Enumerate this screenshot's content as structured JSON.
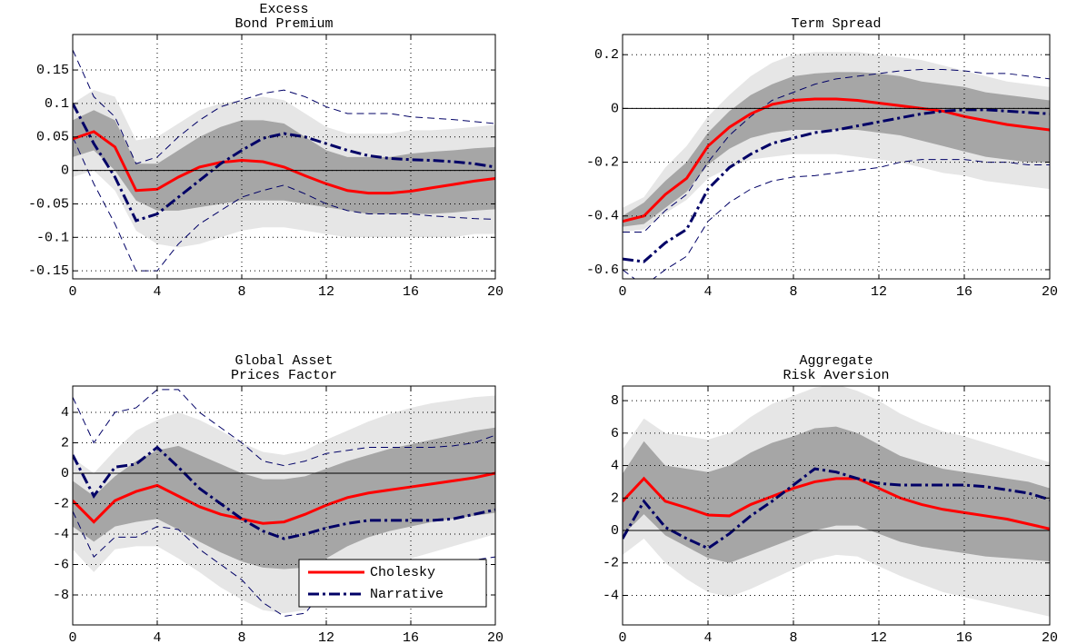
{
  "chart_data": [
    {
      "type": "line",
      "title": [
        "Excess",
        "Bond Premium"
      ],
      "x": [
        0,
        1,
        2,
        3,
        4,
        5,
        6,
        7,
        8,
        9,
        10,
        11,
        12,
        13,
        14,
        15,
        16,
        17,
        18,
        19,
        20
      ],
      "xlim": [
        0,
        20
      ],
      "xticks": [
        0,
        4,
        8,
        12,
        16,
        20
      ],
      "ylim": [
        -0.162,
        0.203
      ],
      "yticks": [
        -0.15,
        -0.1,
        -0.05,
        0,
        0.05,
        0.1,
        0.15
      ],
      "grid": true,
      "bands": [
        {
          "color": "#e6e6e6",
          "style": "fill",
          "lower": [
            -0.01,
            0.0,
            -0.03,
            -0.09,
            -0.11,
            -0.115,
            -0.11,
            -0.1,
            -0.09,
            -0.085,
            -0.085,
            -0.09,
            -0.095,
            -0.1,
            -0.1,
            -0.1,
            -0.1,
            -0.1,
            -0.1,
            -0.095,
            -0.095
          ],
          "upper": [
            0.1,
            0.12,
            0.11,
            0.045,
            0.05,
            0.07,
            0.09,
            0.1,
            0.105,
            0.11,
            0.105,
            0.085,
            0.065,
            0.055,
            0.055,
            0.055,
            0.06,
            0.06,
            0.062,
            0.065,
            0.068
          ]
        },
        {
          "color": "#a6a6a6",
          "style": "fill",
          "lower": [
            0.02,
            0.03,
            0.0,
            -0.045,
            -0.06,
            -0.06,
            -0.055,
            -0.05,
            -0.045,
            -0.045,
            -0.045,
            -0.05,
            -0.055,
            -0.06,
            -0.065,
            -0.065,
            -0.065,
            -0.065,
            -0.063,
            -0.06,
            -0.058
          ],
          "upper": [
            0.075,
            0.09,
            0.075,
            0.01,
            0.01,
            0.03,
            0.05,
            0.065,
            0.075,
            0.075,
            0.07,
            0.05,
            0.03,
            0.02,
            0.02,
            0.02,
            0.025,
            0.028,
            0.03,
            0.033,
            0.035
          ]
        },
        {
          "color": "#000066",
          "style": "dashed",
          "lower": [
            0.05,
            -0.02,
            -0.08,
            -0.15,
            -0.15,
            -0.11,
            -0.08,
            -0.06,
            -0.04,
            -0.03,
            -0.022,
            -0.035,
            -0.05,
            -0.06,
            -0.065,
            -0.065,
            -0.065,
            -0.068,
            -0.07,
            -0.072,
            -0.073
          ],
          "upper": [
            0.18,
            0.11,
            0.08,
            0.01,
            0.02,
            0.05,
            0.075,
            0.095,
            0.105,
            0.115,
            0.12,
            0.11,
            0.095,
            0.085,
            0.085,
            0.085,
            0.08,
            0.078,
            0.076,
            0.073,
            0.07
          ]
        }
      ],
      "series": [
        {
          "color": "#ff0000",
          "dash": "solid",
          "values": [
            0.047,
            0.058,
            0.035,
            -0.03,
            -0.028,
            -0.01,
            0.005,
            0.012,
            0.015,
            0.013,
            0.005,
            -0.008,
            -0.02,
            -0.03,
            -0.034,
            -0.034,
            -0.031,
            -0.026,
            -0.021,
            -0.016,
            -0.012
          ]
        },
        {
          "color": "#000066",
          "dash": "dashdot",
          "values": [
            0.1,
            0.04,
            -0.01,
            -0.075,
            -0.065,
            -0.04,
            -0.015,
            0.01,
            0.03,
            0.048,
            0.055,
            0.05,
            0.04,
            0.03,
            0.022,
            0.018,
            0.016,
            0.015,
            0.013,
            0.01,
            0.005
          ]
        }
      ]
    },
    {
      "type": "line",
      "title": [
        "Term Spread"
      ],
      "x": [
        0,
        1,
        2,
        3,
        4,
        5,
        6,
        7,
        8,
        9,
        10,
        11,
        12,
        13,
        14,
        15,
        16,
        17,
        18,
        19,
        20
      ],
      "xlim": [
        0,
        20
      ],
      "xticks": [
        0,
        4,
        8,
        12,
        16,
        20
      ],
      "ylim": [
        -0.634,
        0.275
      ],
      "yticks": [
        -0.6,
        -0.4,
        -0.2,
        0,
        0.2
      ],
      "grid": true,
      "bands": [
        {
          "color": "#e6e6e6",
          "style": "fill",
          "lower": [
            -0.46,
            -0.45,
            -0.39,
            -0.34,
            -0.26,
            -0.22,
            -0.19,
            -0.18,
            -0.17,
            -0.17,
            -0.17,
            -0.18,
            -0.19,
            -0.2,
            -0.22,
            -0.24,
            -0.25,
            -0.27,
            -0.28,
            -0.29,
            -0.3
          ],
          "upper": [
            -0.37,
            -0.33,
            -0.22,
            -0.14,
            -0.03,
            0.05,
            0.12,
            0.17,
            0.2,
            0.21,
            0.21,
            0.21,
            0.2,
            0.19,
            0.18,
            0.16,
            0.14,
            0.12,
            0.1,
            0.09,
            0.08
          ]
        },
        {
          "color": "#a6a6a6",
          "style": "fill",
          "lower": [
            -0.44,
            -0.43,
            -0.37,
            -0.31,
            -0.21,
            -0.15,
            -0.11,
            -0.09,
            -0.08,
            -0.08,
            -0.08,
            -0.08,
            -0.09,
            -0.1,
            -0.12,
            -0.14,
            -0.16,
            -0.18,
            -0.19,
            -0.2,
            -0.2
          ],
          "upper": [
            -0.4,
            -0.35,
            -0.27,
            -0.2,
            -0.09,
            -0.01,
            0.05,
            0.09,
            0.12,
            0.13,
            0.135,
            0.135,
            0.13,
            0.12,
            0.1,
            0.09,
            0.08,
            0.06,
            0.05,
            0.04,
            0.03
          ]
        },
        {
          "color": "#000066",
          "style": "dashed",
          "lower": [
            -0.6,
            -0.66,
            -0.6,
            -0.55,
            -0.42,
            -0.35,
            -0.3,
            -0.27,
            -0.255,
            -0.25,
            -0.24,
            -0.23,
            -0.22,
            -0.2,
            -0.19,
            -0.19,
            -0.19,
            -0.2,
            -0.2,
            -0.21,
            -0.21
          ],
          "upper": [
            -0.46,
            -0.46,
            -0.38,
            -0.32,
            -0.2,
            -0.1,
            -0.03,
            0.03,
            0.06,
            0.09,
            0.11,
            0.12,
            0.13,
            0.14,
            0.145,
            0.145,
            0.14,
            0.13,
            0.13,
            0.12,
            0.11
          ]
        }
      ],
      "series": [
        {
          "color": "#ff0000",
          "dash": "solid",
          "values": [
            -0.42,
            -0.4,
            -0.32,
            -0.26,
            -0.14,
            -0.07,
            -0.02,
            0.015,
            0.03,
            0.035,
            0.035,
            0.03,
            0.02,
            0.01,
            0.0,
            -0.01,
            -0.03,
            -0.045,
            -0.06,
            -0.07,
            -0.08
          ]
        },
        {
          "color": "#000066",
          "dash": "dashdot",
          "values": [
            -0.56,
            -0.57,
            -0.5,
            -0.45,
            -0.3,
            -0.22,
            -0.17,
            -0.13,
            -0.11,
            -0.09,
            -0.08,
            -0.065,
            -0.05,
            -0.035,
            -0.02,
            -0.01,
            -0.005,
            -0.005,
            -0.01,
            -0.015,
            -0.02
          ]
        }
      ]
    },
    {
      "type": "line",
      "title": [
        "Global Asset",
        "Prices Factor"
      ],
      "x": [
        0,
        1,
        2,
        3,
        4,
        5,
        6,
        7,
        8,
        9,
        10,
        11,
        12,
        13,
        14,
        15,
        16,
        17,
        18,
        19,
        20
      ],
      "xlim": [
        0,
        20
      ],
      "xticks": [
        0,
        4,
        8,
        12,
        16,
        20
      ],
      "ylim": [
        -9.97,
        5.73
      ],
      "yticks": [
        -8,
        -6,
        -4,
        -2,
        0,
        2,
        4
      ],
      "grid": true,
      "legend": "lower right",
      "bands": [
        {
          "color": "#e6e6e6",
          "style": "fill",
          "lower": [
            -5.0,
            -6.5,
            -5.0,
            -4.8,
            -4.8,
            -5.6,
            -6.5,
            -7.5,
            -8.3,
            -9.0,
            -9.2,
            -9.0,
            -8.2,
            -7.4,
            -6.6,
            -6.0,
            -5.6,
            -5.2,
            -4.8,
            -4.4,
            -4.0
          ],
          "upper": [
            1.0,
            0.0,
            1.5,
            2.8,
            3.5,
            4.0,
            3.5,
            2.8,
            2.0,
            1.4,
            1.2,
            1.5,
            2.2,
            2.8,
            3.4,
            3.9,
            4.3,
            4.6,
            4.8,
            5.0,
            5.1
          ]
        },
        {
          "color": "#a6a6a6",
          "style": "fill",
          "lower": [
            -3.5,
            -4.5,
            -3.5,
            -3.2,
            -3.0,
            -3.7,
            -4.5,
            -5.2,
            -5.8,
            -6.2,
            -6.3,
            -6.2,
            -5.6,
            -4.8,
            -4.2,
            -3.8,
            -3.5,
            -3.2,
            -3.0,
            -2.8,
            -2.6
          ],
          "upper": [
            -0.5,
            -1.5,
            -0.2,
            0.8,
            1.5,
            1.8,
            1.2,
            0.6,
            0.0,
            -0.4,
            -0.4,
            -0.2,
            0.3,
            0.8,
            1.2,
            1.6,
            1.9,
            2.2,
            2.5,
            2.8,
            3.0
          ]
        },
        {
          "color": "#000066",
          "style": "dashed",
          "lower": [
            -2.5,
            -5.5,
            -4.2,
            -4.2,
            -3.5,
            -3.7,
            -5.0,
            -6.0,
            -7.0,
            -8.5,
            -9.4,
            -9.2,
            -7.5,
            -6.5,
            -6.2,
            -6.2,
            -6.2,
            -6.2,
            -6.0,
            -5.7,
            -5.5
          ],
          "upper": [
            5.0,
            2.0,
            4.0,
            4.3,
            5.5,
            5.5,
            4.0,
            3.0,
            2.0,
            0.8,
            0.5,
            0.8,
            1.3,
            1.5,
            1.7,
            1.7,
            1.7,
            1.7,
            1.8,
            2.0,
            2.5
          ]
        }
      ],
      "series": [
        {
          "name": "Cholesky",
          "color": "#ff0000",
          "dash": "solid",
          "values": [
            -1.8,
            -3.2,
            -1.8,
            -1.2,
            -0.8,
            -1.5,
            -2.2,
            -2.7,
            -3.0,
            -3.3,
            -3.2,
            -2.7,
            -2.1,
            -1.6,
            -1.3,
            -1.1,
            -0.9,
            -0.7,
            -0.5,
            -0.3,
            0.0
          ]
        },
        {
          "name": "Narrative",
          "color": "#000066",
          "dash": "dashdot",
          "values": [
            1.2,
            -1.5,
            0.4,
            0.6,
            1.7,
            0.4,
            -1.0,
            -2.0,
            -3.0,
            -3.8,
            -4.3,
            -4.0,
            -3.6,
            -3.3,
            -3.1,
            -3.1,
            -3.1,
            -3.1,
            -3.0,
            -2.7,
            -2.4
          ]
        }
      ]
    },
    {
      "type": "line",
      "title": [
        "Aggregate",
        "Risk Aversion"
      ],
      "x": [
        0,
        1,
        2,
        3,
        4,
        5,
        6,
        7,
        8,
        9,
        10,
        11,
        12,
        13,
        14,
        15,
        16,
        17,
        18,
        19,
        20
      ],
      "xlim": [
        0,
        20
      ],
      "xticks": [
        0,
        4,
        8,
        12,
        16,
        20
      ],
      "ylim": [
        -5.82,
        8.9
      ],
      "yticks": [
        -4,
        -2,
        0,
        2,
        4,
        6,
        8
      ],
      "grid": true,
      "bands": [
        {
          "color": "#e6e6e6",
          "style": "fill",
          "lower": [
            -1.5,
            -0.5,
            -2.0,
            -3.0,
            -3.8,
            -4.1,
            -3.6,
            -3.0,
            -2.4,
            -1.8,
            -1.5,
            -1.6,
            -2.2,
            -2.8,
            -3.3,
            -3.8,
            -4.1,
            -4.4,
            -4.7,
            -5.0,
            -5.3
          ],
          "upper": [
            5.0,
            6.9,
            6.0,
            5.8,
            5.6,
            6.0,
            7.0,
            7.8,
            8.3,
            8.8,
            9.0,
            8.6,
            8.0,
            7.2,
            6.6,
            6.1,
            5.8,
            5.4,
            5.0,
            4.6,
            4.2
          ]
        },
        {
          "color": "#a6a6a6",
          "style": "fill",
          "lower": [
            -0.3,
            1.0,
            -0.3,
            -1.0,
            -1.7,
            -2.0,
            -1.5,
            -1.0,
            -0.5,
            0.0,
            0.3,
            0.3,
            -0.2,
            -0.7,
            -1.0,
            -1.2,
            -1.4,
            -1.6,
            -1.7,
            -1.8,
            -1.9
          ],
          "upper": [
            3.5,
            5.5,
            4.0,
            3.8,
            3.6,
            4.0,
            4.8,
            5.4,
            5.8,
            6.3,
            6.4,
            6.0,
            5.3,
            4.6,
            4.2,
            3.8,
            3.6,
            3.4,
            3.2,
            3.0,
            2.6
          ]
        }
      ],
      "series": [
        {
          "color": "#ff0000",
          "dash": "solid",
          "values": [
            1.8,
            3.2,
            1.8,
            1.4,
            0.95,
            0.9,
            1.6,
            2.1,
            2.6,
            3.0,
            3.2,
            3.2,
            2.6,
            2.0,
            1.6,
            1.3,
            1.1,
            0.9,
            0.7,
            0.4,
            0.1
          ]
        },
        {
          "color": "#000066",
          "dash": "dashdot",
          "values": [
            -0.5,
            1.8,
            0.2,
            -0.5,
            -1.1,
            -0.2,
            0.9,
            1.8,
            2.8,
            3.8,
            3.6,
            3.2,
            2.9,
            2.8,
            2.8,
            2.8,
            2.8,
            2.7,
            2.5,
            2.3,
            1.9
          ]
        }
      ]
    }
  ]
}
